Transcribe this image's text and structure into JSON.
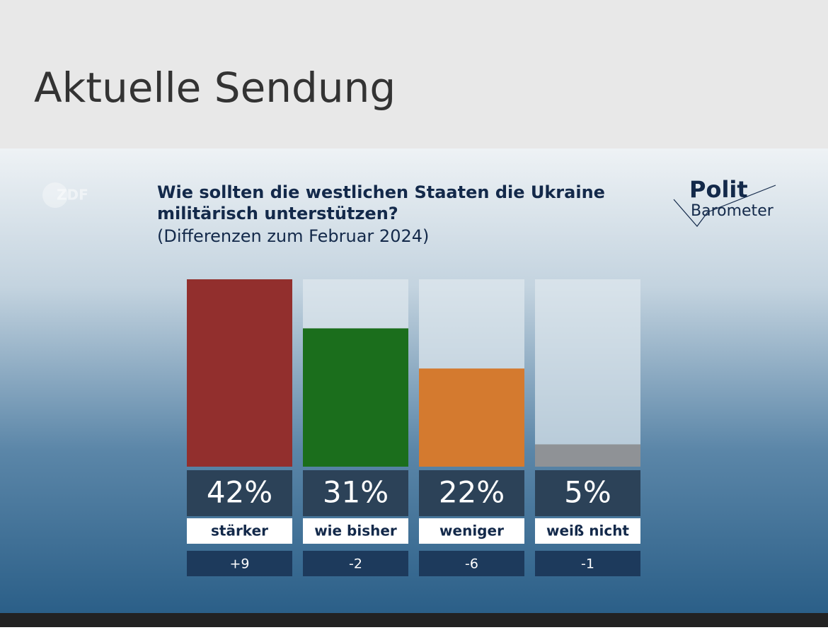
{
  "header": {
    "title": "Aktuelle Sendung"
  },
  "chart_data": {
    "type": "bar",
    "logo": "ZDF",
    "brand": "Polit",
    "brand_sub": "Barometer",
    "title": [
      "Wie sollten die westlichen Staaten die Ukraine",
      "militärisch unterstützen?"
    ],
    "subtitle": "(Differenzen zum Februar 2024)",
    "categories": [
      "stärker",
      "wie bisher",
      "weniger",
      "weiß nicht"
    ],
    "values": [
      42,
      31,
      22,
      5
    ],
    "value_labels": [
      "42%",
      "31%",
      "22%",
      "5%"
    ],
    "colors": [
      "#922f2d",
      "#1b6e1c",
      "#d47a2f",
      "#8f9296"
    ],
    "changes": [
      9,
      -2,
      -6,
      -1
    ],
    "change_labels": [
      "+9",
      "-2",
      "-6",
      "-1"
    ],
    "ylim": [
      0,
      42
    ]
  }
}
